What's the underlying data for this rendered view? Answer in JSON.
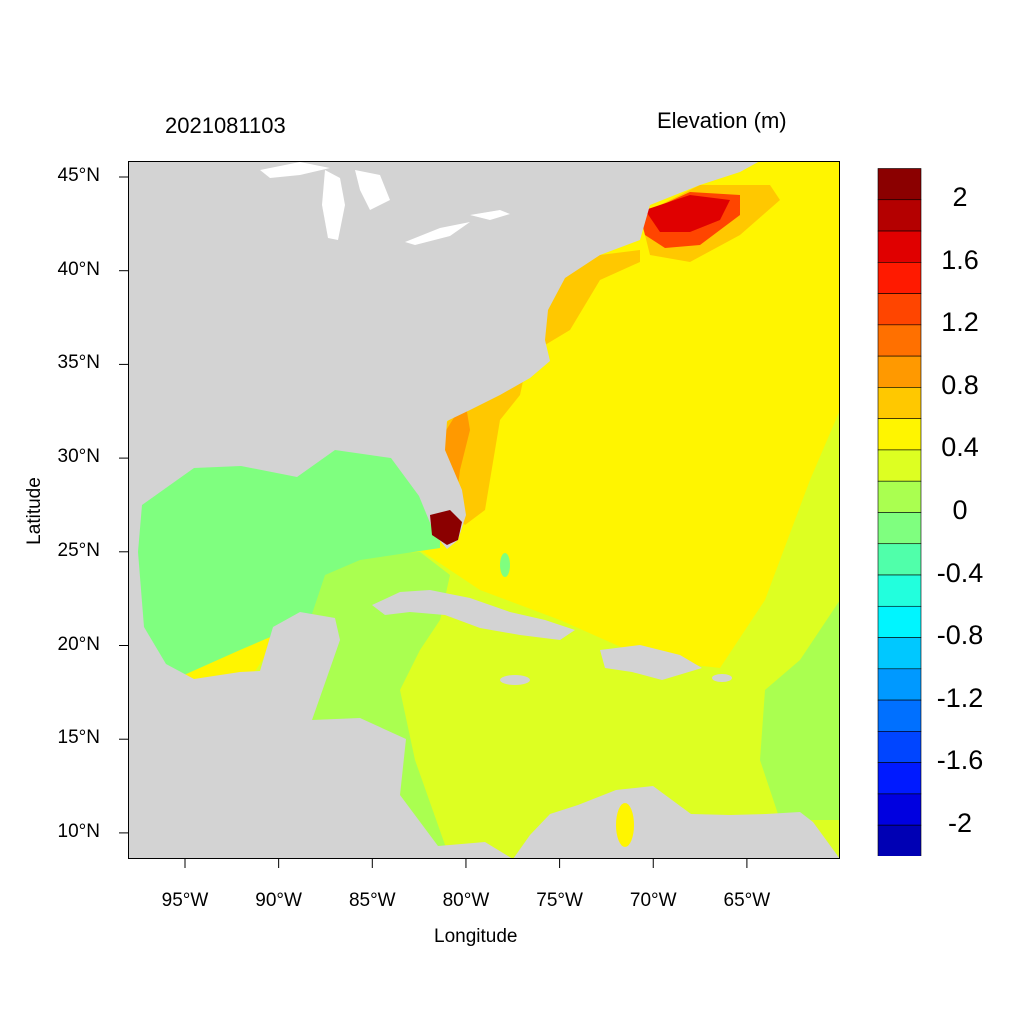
{
  "chart_data": {
    "type": "heatmap",
    "title_left": "2021081103",
    "title_right": "Elevation (m)",
    "xlabel": "Longitude",
    "ylabel": "Latitude",
    "xlim": [
      -98.0,
      -60.0
    ],
    "ylim": [
      8.6,
      45.8
    ],
    "x_ticks": [
      {
        "value": -95,
        "label": "95°W"
      },
      {
        "value": -90,
        "label": "90°W"
      },
      {
        "value": -85,
        "label": "85°W"
      },
      {
        "value": -80,
        "label": "80°W"
      },
      {
        "value": -75,
        "label": "75°W"
      },
      {
        "value": -70,
        "label": "70°W"
      },
      {
        "value": -65,
        "label": "65°W"
      }
    ],
    "y_ticks": [
      {
        "value": 10,
        "label": "10°N"
      },
      {
        "value": 15,
        "label": "15°N"
      },
      {
        "value": 20,
        "label": "20°N"
      },
      {
        "value": 25,
        "label": "25°N"
      },
      {
        "value": 30,
        "label": "30°N"
      },
      {
        "value": 35,
        "label": "35°N"
      },
      {
        "value": 40,
        "label": "40°N"
      },
      {
        "value": 45,
        "label": "45°N"
      }
    ],
    "colorbar": {
      "boundaries": [
        2.0,
        1.8,
        1.6,
        1.4,
        1.2,
        1.0,
        0.8,
        0.6,
        0.4,
        0.2,
        0.0,
        -0.2,
        -0.4,
        -0.6,
        -0.8,
        -1.0,
        -1.2,
        -1.4,
        -1.6,
        -1.8,
        -2.0
      ],
      "labels": [
        {
          "value": 2,
          "label": "2"
        },
        {
          "value": 1.6,
          "label": "1.6"
        },
        {
          "value": 1.2,
          "label": "1.2"
        },
        {
          "value": 0.8,
          "label": "0.8"
        },
        {
          "value": 0.4,
          "label": "0.4"
        },
        {
          "value": 0,
          "label": "0"
        },
        {
          "value": -0.4,
          "label": "-0.4"
        },
        {
          "value": -0.8,
          "label": "-0.8"
        },
        {
          "value": -1.2,
          "label": "-1.2"
        },
        {
          "value": -1.6,
          "label": "-1.6"
        },
        {
          "value": -2,
          "label": "-2"
        }
      ],
      "colors": [
        "#8B0000",
        "#B40000",
        "#E00000",
        "#FF1A00",
        "#FF4500",
        "#FF7000",
        "#FF9900",
        "#FFC800",
        "#FFF500",
        "#DDFF22",
        "#AAFF50",
        "#7FFF7F",
        "#50FFAA",
        "#22FFDD",
        "#00F5FF",
        "#00C8FF",
        "#0099FF",
        "#0070FF",
        "#0045FF",
        "#001AFF",
        "#0000E0",
        "#0000B4"
      ]
    },
    "land_color": "#D3D3D3"
  }
}
